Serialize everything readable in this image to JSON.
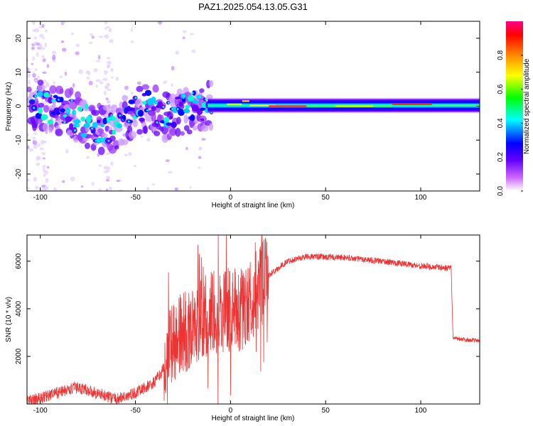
{
  "title": "PAZ1.2025.054.13.05.G31",
  "chart_data": [
    {
      "type": "heatmap",
      "xlabel": "Height of straight line (km)",
      "ylabel": "Frequency (Hz)",
      "xlim": [
        -107,
        131
      ],
      "ylim": [
        -25,
        25
      ],
      "xticks": [
        -100,
        -50,
        0,
        50,
        100
      ],
      "xtick_labels": [
        "-100",
        "-50",
        "0",
        "50",
        "100"
      ],
      "yticks": [
        -20,
        -10,
        0,
        10,
        20
      ],
      "ytick_labels": [
        "-20",
        "-10",
        "0",
        "10",
        "20"
      ],
      "colorbar": {
        "label": "Normalized spectral amplitude",
        "range": [
          0,
          1
        ],
        "ticks": [
          0.0,
          0.2,
          0.4,
          0.6,
          0.8
        ],
        "tick_labels": [
          "0.0",
          "0.2",
          "0.4",
          "0.6",
          "0.8"
        ],
        "colors": [
          "#ffffff",
          "#cc66ff",
          "#6600ff",
          "#0000ff",
          "#00ffff",
          "#00ff00",
          "#ffff00",
          "#ff8800",
          "#ff0000",
          "#ff0088"
        ]
      },
      "ridge": {
        "description_points": [
          {
            "x": -105,
            "y": 1
          },
          {
            "x": -95,
            "y": -1
          },
          {
            "x": -85,
            "y": -2
          },
          {
            "x": -75,
            "y": -5
          },
          {
            "x": -65,
            "y": -7
          },
          {
            "x": -55,
            "y": -3
          },
          {
            "x": -45,
            "y": 0
          },
          {
            "x": -35,
            "y": -3
          },
          {
            "x": -25,
            "y": -1
          },
          {
            "x": -15,
            "y": 0
          },
          {
            "x": 0,
            "y": 0
          },
          {
            "x": 8,
            "y": 1.5
          },
          {
            "x": 20,
            "y": 0
          },
          {
            "x": 50,
            "y": 0
          },
          {
            "x": 90,
            "y": 0.5
          },
          {
            "x": 131,
            "y": 0.5
          }
        ]
      }
    },
    {
      "type": "line",
      "xlabel": "Height of straight line (km)",
      "ylabel": "SNR (10 * v/v)",
      "xlim": [
        -107,
        131
      ],
      "ylim": [
        0,
        7100
      ],
      "xticks": [
        -100,
        -50,
        0,
        50,
        100
      ],
      "xtick_labels": [
        "-100",
        "-50",
        "0",
        "50",
        "100"
      ],
      "yticks": [
        2000,
        4000,
        6000
      ],
      "ytick_labels": [
        "2000",
        "4000",
        "6000"
      ],
      "color": "#ee3333",
      "trend": [
        {
          "x": -107,
          "y": 100
        },
        {
          "x": -100,
          "y": 250
        },
        {
          "x": -90,
          "y": 500
        },
        {
          "x": -80,
          "y": 700
        },
        {
          "x": -70,
          "y": 450
        },
        {
          "x": -60,
          "y": 200
        },
        {
          "x": -50,
          "y": 450
        },
        {
          "x": -40,
          "y": 900
        },
        {
          "x": -35,
          "y": 1500
        },
        {
          "x": -30,
          "y": 2600
        },
        {
          "x": -20,
          "y": 3200
        },
        {
          "x": -12,
          "y": 3700
        },
        {
          "x": -5,
          "y": 3900
        },
        {
          "x": 0,
          "y": 4000
        },
        {
          "x": 5,
          "y": 3900
        },
        {
          "x": 10,
          "y": 4300
        },
        {
          "x": 20,
          "y": 5400
        },
        {
          "x": 30,
          "y": 6000
        },
        {
          "x": 40,
          "y": 6200
        },
        {
          "x": 60,
          "y": 6150
        },
        {
          "x": 80,
          "y": 6000
        },
        {
          "x": 100,
          "y": 5800
        },
        {
          "x": 116,
          "y": 5700
        },
        {
          "x": 117,
          "y": 2750
        },
        {
          "x": 131,
          "y": 2650
        }
      ]
    }
  ]
}
